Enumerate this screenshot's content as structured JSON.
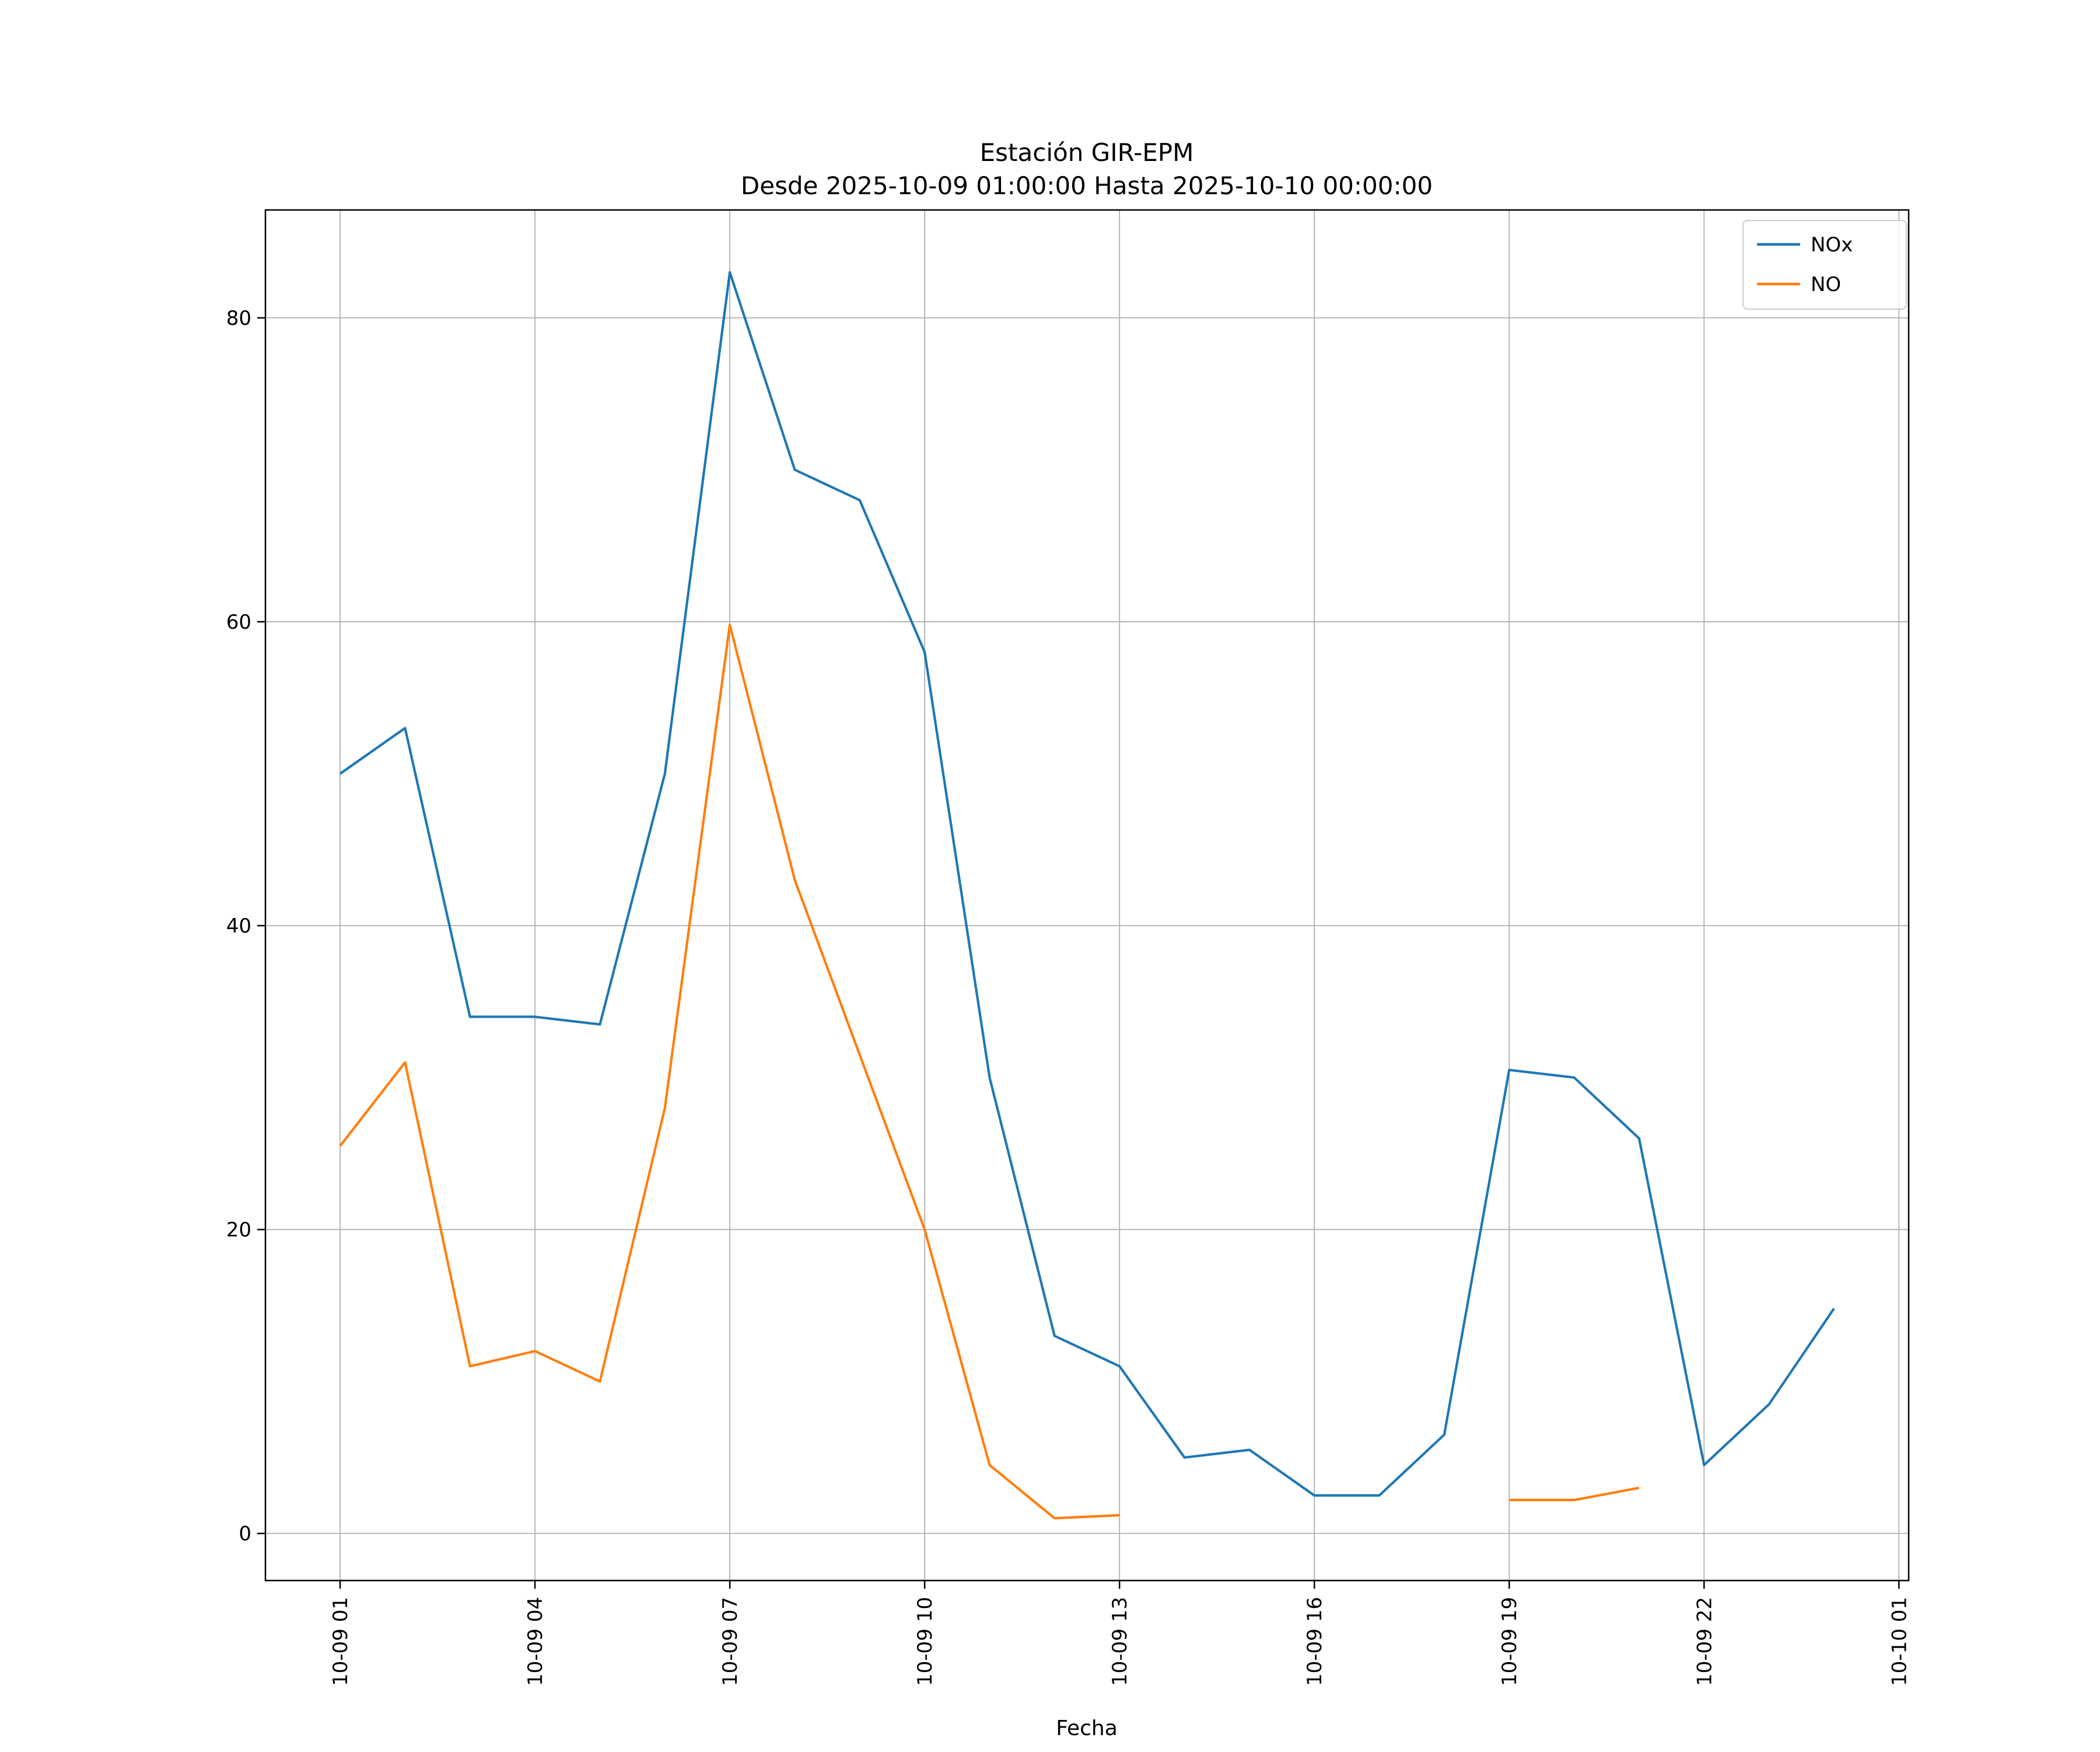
{
  "chart_data": {
    "type": "line",
    "title": "Estación GIR-EPM",
    "subtitle": "Desde 2025-10-09 01:00:00 Hasta 2025-10-10 00:00:00",
    "xlabel": "Fecha",
    "ylabel": "",
    "grid": true,
    "legend_position": "upper right",
    "xlim": [
      -0.15,
      25.15
    ],
    "ylim": [
      -3.1,
      87.1
    ],
    "x_hours": [
      1,
      2,
      3,
      4,
      5,
      6,
      7,
      8,
      9,
      10,
      11,
      12,
      13,
      14,
      15,
      16,
      17,
      18,
      19,
      20,
      21,
      22,
      23,
      24
    ],
    "xtick_positions": [
      1,
      4,
      7,
      10,
      13,
      16,
      19,
      22,
      25
    ],
    "xtick_labels": [
      "10-09 01",
      "10-09 04",
      "10-09 07",
      "10-09 10",
      "10-09 13",
      "10-09 16",
      "10-09 19",
      "10-09 22",
      "10-10 01"
    ],
    "ytick_values": [
      0,
      20,
      40,
      60,
      80
    ],
    "colors": {
      "grid": "#b0b0b0",
      "axis": "#000000",
      "legend_border": "#cccccc"
    },
    "series": [
      {
        "name": "NOx",
        "color": "#1f77b4",
        "values": [
          50,
          53,
          34,
          34,
          33.5,
          50,
          83,
          70,
          68,
          58,
          30,
          13,
          11,
          5,
          5.5,
          2.5,
          2.5,
          6.5,
          30.5,
          30,
          26,
          4.5,
          8.5,
          14.8
        ]
      },
      {
        "name": "NO",
        "color": "#ff7f0e",
        "values": [
          25.5,
          31,
          11,
          12,
          10,
          28,
          59.8,
          43,
          31.5,
          20,
          4.5,
          1,
          1.2,
          null,
          null,
          null,
          null,
          null,
          2.2,
          2.2,
          3,
          null,
          null,
          null
        ]
      }
    ]
  }
}
